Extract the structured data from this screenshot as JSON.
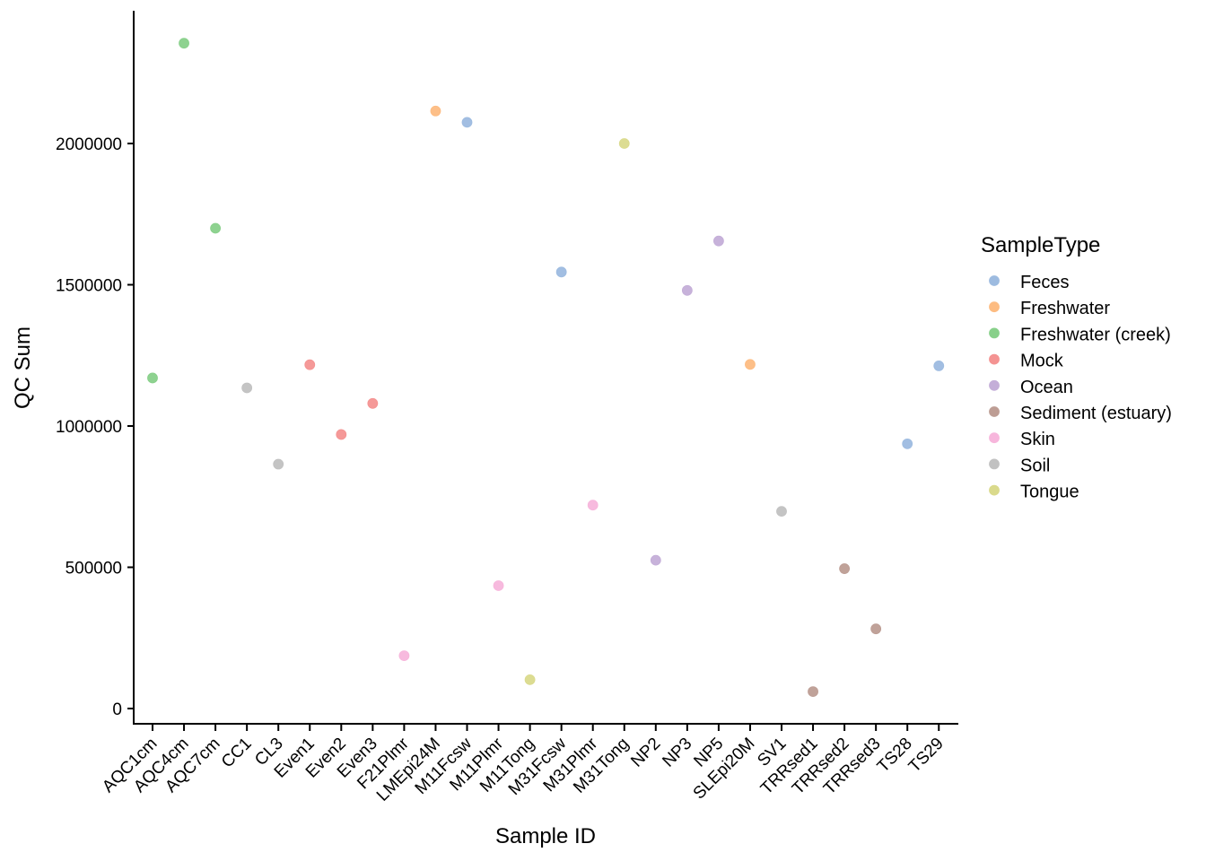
{
  "chart_data": {
    "type": "scatter",
    "xlabel": "Sample ID",
    "ylabel": "QC Sum",
    "ylim": [
      -50000,
      2480000
    ],
    "yticks": [
      0,
      500000,
      1000000,
      1500000,
      2000000
    ],
    "ytick_labels": [
      "0",
      "500000",
      "1000000",
      "1500000",
      "2000000"
    ],
    "grid": false,
    "legend_position": "right",
    "legend_title": "SampleType",
    "categories": [
      "AQC1cm",
      "AQC4cm",
      "AQC7cm",
      "CC1",
      "CL3",
      "Even1",
      "Even2",
      "Even3",
      "F21Plmr",
      "LMEpi24M",
      "M11Fcsw",
      "M11Plmr",
      "M11Tong",
      "M31Fcsw",
      "M31Plmr",
      "M31Tong",
      "NP2",
      "NP3",
      "NP5",
      "SLEpi20M",
      "SV1",
      "TRRsed1",
      "TRRsed2",
      "TRRsed3",
      "TS28",
      "TS29"
    ],
    "series": [
      {
        "name": "Feces",
        "color": "#9dbbe0",
        "points": [
          [
            "M11Fcsw",
            2075000
          ],
          [
            "M31Fcsw",
            1545000
          ],
          [
            "TS28",
            937000
          ],
          [
            "TS29",
            1213000
          ]
        ]
      },
      {
        "name": "Freshwater",
        "color": "#fdbc82",
        "points": [
          [
            "LMEpi24M",
            2115000
          ],
          [
            "SLEpi20M",
            1218000
          ]
        ]
      },
      {
        "name": "Freshwater (creek)",
        "color": "#88d08a",
        "points": [
          [
            "AQC1cm",
            1170000
          ],
          [
            "AQC4cm",
            2355000
          ],
          [
            "AQC7cm",
            1700000
          ]
        ]
      },
      {
        "name": "Mock",
        "color": "#f49392",
        "points": [
          [
            "Even1",
            1217000
          ],
          [
            "Even2",
            970000
          ],
          [
            "Even3",
            1080000
          ]
        ]
      },
      {
        "name": "Ocean",
        "color": "#c4aed8",
        "points": [
          [
            "NP2",
            525000
          ],
          [
            "NP3",
            1480000
          ],
          [
            "NP5",
            1655000
          ]
        ]
      },
      {
        "name": "Sediment (estuary)",
        "color": "#bd9d94",
        "points": [
          [
            "TRRsed1",
            60000
          ],
          [
            "TRRsed2",
            495000
          ],
          [
            "TRRsed3",
            282000
          ]
        ]
      },
      {
        "name": "Skin",
        "color": "#f7b6dc",
        "points": [
          [
            "F21Plmr",
            187000
          ],
          [
            "M11Plmr",
            435000
          ],
          [
            "M31Plmr",
            720000
          ]
        ]
      },
      {
        "name": "Soil",
        "color": "#c1c1c1",
        "points": [
          [
            "CC1",
            1135000
          ],
          [
            "CL3",
            865000
          ],
          [
            "SV1",
            698000
          ]
        ]
      },
      {
        "name": "Tongue",
        "color": "#dada8c",
        "points": [
          [
            "M11Tong",
            102000
          ],
          [
            "M31Tong",
            2000000
          ]
        ]
      }
    ]
  }
}
